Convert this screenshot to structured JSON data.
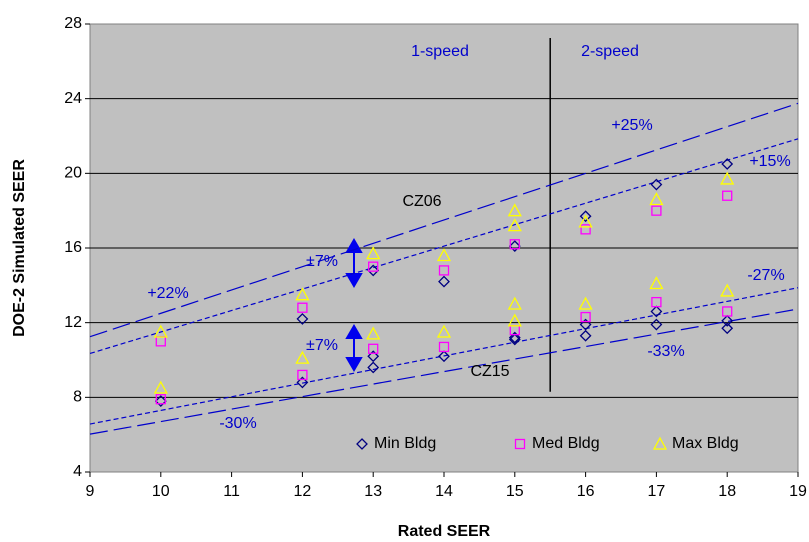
{
  "chart_data": {
    "type": "scatter",
    "x_label": "Rated SEER",
    "y_label": "DOE-2 Simulated SEER",
    "xlim": [
      9,
      19
    ],
    "xticks": [
      9,
      10,
      11,
      12,
      13,
      14,
      15,
      16,
      17,
      18,
      19
    ],
    "ylim": [
      4,
      28
    ],
    "yticks": [
      4,
      8,
      12,
      16,
      20,
      24,
      28
    ],
    "grid": true,
    "legend": "bottom",
    "series": [
      {
        "name": "Min Bldg",
        "marker": "diamond",
        "color": "#000080",
        "x": [
          10,
          12,
          12,
          13,
          13,
          13,
          14,
          14,
          15,
          15,
          15,
          16,
          16,
          16,
          17,
          17,
          17,
          18,
          18,
          18
        ],
        "values": [
          7.8,
          12.2,
          8.8,
          14.8,
          10.2,
          9.6,
          14.2,
          10.2,
          16.1,
          11.1,
          11.2,
          17.7,
          11.9,
          11.3,
          19.4,
          12.6,
          11.9,
          20.5,
          12.1,
          11.7
        ]
      },
      {
        "name": "Med Bldg",
        "marker": "square",
        "color": "#ff00ff",
        "x": [
          10,
          10,
          12,
          12,
          13,
          13,
          14,
          14,
          15,
          15,
          16,
          16,
          17,
          17,
          18,
          18
        ],
        "values": [
          11.0,
          7.9,
          12.8,
          9.2,
          15.0,
          10.6,
          14.8,
          10.7,
          16.2,
          11.6,
          17.0,
          12.3,
          18.0,
          13.1,
          18.8,
          12.6
        ]
      },
      {
        "name": "Max Bldg",
        "marker": "triangle",
        "color": "#ffff00",
        "x": [
          10,
          10,
          12,
          12,
          13,
          13,
          14,
          14,
          15,
          15,
          15,
          15,
          16,
          16,
          17,
          17,
          18,
          18
        ],
        "values": [
          11.5,
          8.5,
          13.5,
          10.1,
          15.7,
          11.4,
          15.6,
          11.5,
          18.0,
          17.2,
          13.0,
          12.1,
          17.4,
          13.0,
          18.6,
          14.1,
          19.7,
          13.7
        ]
      }
    ],
    "reference_lines": [
      {
        "dash": "long",
        "x": [
          9,
          19
        ],
        "values": [
          11.25,
          23.75
        ]
      },
      {
        "dash": "short",
        "x": [
          9,
          19
        ],
        "values": [
          10.35,
          21.85
        ]
      },
      {
        "dash": "short",
        "x": [
          9,
          19
        ],
        "values": [
          6.57,
          13.87
        ]
      },
      {
        "dash": "long",
        "x": [
          9,
          19
        ],
        "values": [
          6.03,
          12.73
        ]
      }
    ],
    "divider_x": 15.5,
    "annotations": [
      "1-speed",
      "2-speed",
      "+25%",
      "+15%",
      "CZ06",
      "±7%",
      "+22%",
      "±7%",
      "CZ15",
      "-27%",
      "-33%",
      "-30%"
    ]
  }
}
